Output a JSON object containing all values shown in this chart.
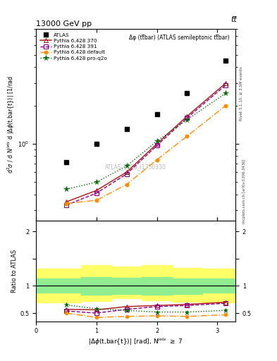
{
  "title_top": "13000 GeV pp",
  "title_top_right": "tt̅",
  "subtitle": "Δφ (tt̅bar) (ATLAS semileptonic tt̅bar)",
  "watermark": "ATLAS_2019_I1750330",
  "right_label_top": "Rivet 3.1.10, ≥ 3.5M events",
  "right_label_bottom": "mcplots.cern.ch [arXiv:1306.3436]",
  "atlas_x": [
    0.5,
    1.0,
    1.5,
    2.0,
    2.5,
    3.14
  ],
  "atlas_y": [
    0.72,
    1.0,
    1.3,
    1.7,
    2.5,
    4.5
  ],
  "py370_x": [
    0.5,
    1.0,
    1.5,
    2.0,
    2.5,
    3.14
  ],
  "py370_y": [
    0.35,
    0.43,
    0.6,
    1.0,
    1.65,
    3.0
  ],
  "py391_x": [
    0.5,
    1.0,
    1.5,
    2.0,
    2.5,
    3.14
  ],
  "py391_y": [
    0.33,
    0.41,
    0.58,
    0.97,
    1.6,
    2.9
  ],
  "pydef_x": [
    0.5,
    1.0,
    1.5,
    2.0,
    2.5,
    3.14
  ],
  "pydef_y": [
    0.34,
    0.36,
    0.48,
    0.75,
    1.15,
    2.0
  ],
  "pyq2o_x": [
    0.5,
    1.0,
    1.5,
    2.0,
    2.5,
    3.14
  ],
  "pyq2o_y": [
    0.44,
    0.5,
    0.67,
    1.05,
    1.55,
    2.5
  ],
  "ratio_x": [
    0.5,
    1.0,
    1.5,
    2.0,
    2.5,
    3.14
  ],
  "ratio_py370_y": [
    0.57,
    0.56,
    0.62,
    0.64,
    0.66,
    0.7
  ],
  "ratio_py391_y": [
    0.54,
    0.5,
    0.57,
    0.62,
    0.64,
    0.68
  ],
  "ratio_pydef_y": [
    0.5,
    0.42,
    0.44,
    0.45,
    0.44,
    0.47
  ],
  "ratio_pyq2o_y": [
    0.65,
    0.58,
    0.55,
    0.52,
    0.52,
    0.55
  ],
  "band_x_edges": [
    0.0,
    0.75,
    1.25,
    1.75,
    2.25,
    2.75,
    3.3
  ],
  "band_green_lo": [
    0.87,
    0.84,
    0.85,
    0.84,
    0.85,
    0.87
  ],
  "band_green_hi": [
    1.13,
    1.16,
    1.15,
    1.16,
    1.14,
    1.13
  ],
  "band_yellow_lo": [
    0.7,
    0.72,
    0.77,
    0.73,
    0.71,
    0.7
  ],
  "band_yellow_hi": [
    1.32,
    1.38,
    1.35,
    1.38,
    1.33,
    1.32
  ],
  "color_py370": "#b22222",
  "color_py391": "#8b008b",
  "color_pydef": "#ff8c00",
  "color_pyq2o": "#006400",
  "color_atlas": "#000000",
  "color_green_band": "#90ee90",
  "color_yellow_band": "#ffff66",
  "xlim": [
    0.0,
    3.3
  ],
  "ylim_main_lo": 0.25,
  "ylim_main_hi": 8.0,
  "ylim_ratio_lo": 0.35,
  "ylim_ratio_hi": 2.2
}
